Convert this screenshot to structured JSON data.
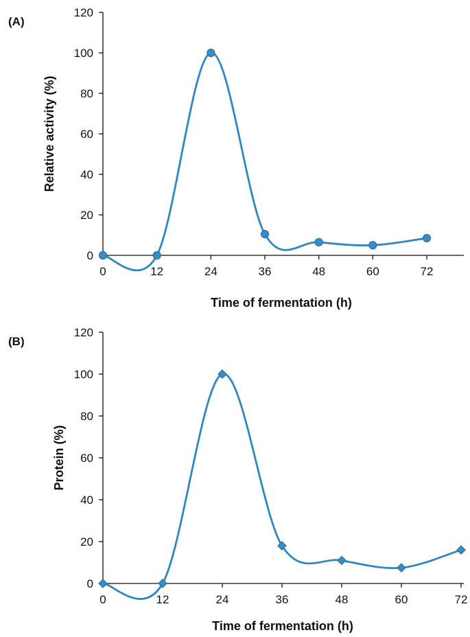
{
  "colors": {
    "series": "#2f86c2",
    "marker_fill": "#3a8cc6",
    "marker_edge": "#2a6fa3",
    "axis": "#111111"
  },
  "chart_data": [
    {
      "panel_label": "(A)",
      "type": "line",
      "smooth": true,
      "marker": "circle",
      "xlabel": "Time of fermentation (h)",
      "ylabel": "Relative activity (%)",
      "x": [
        0,
        12,
        24,
        36,
        48,
        60,
        72
      ],
      "xticks": [
        0,
        12,
        24,
        36,
        48,
        60,
        72
      ],
      "yticks": [
        0,
        20,
        40,
        60,
        80,
        100,
        120
      ],
      "ylim": [
        0,
        120
      ],
      "xlim": [
        0,
        72
      ],
      "grid": false,
      "series": [
        {
          "values": [
            0,
            0,
            100,
            10.5,
            6.5,
            5,
            8.5
          ]
        }
      ]
    },
    {
      "panel_label": "(B)",
      "type": "line",
      "smooth": true,
      "marker": "diamond",
      "xlabel": "Time of fermentation (h)",
      "ylabel": "Protein (%)",
      "x": [
        0,
        12,
        24,
        36,
        48,
        60,
        72
      ],
      "xticks": [
        0,
        12,
        24,
        36,
        48,
        60,
        72
      ],
      "yticks": [
        0,
        20,
        40,
        60,
        80,
        100,
        120
      ],
      "ylim": [
        0,
        120
      ],
      "xlim": [
        0,
        72
      ],
      "grid": false,
      "series": [
        {
          "values": [
            0,
            0,
            100,
            18,
            11,
            7.5,
            16
          ]
        }
      ]
    }
  ]
}
